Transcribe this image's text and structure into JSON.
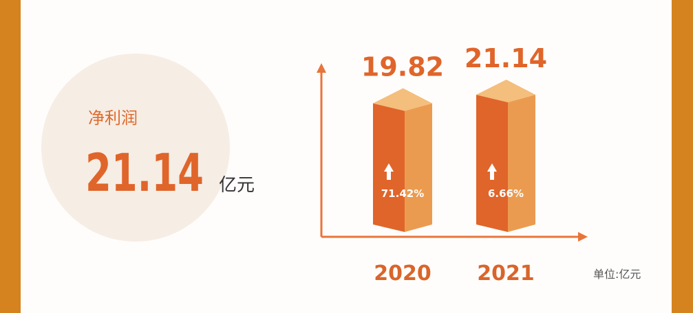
{
  "chart_data": {
    "type": "bar3d",
    "highlight": {
      "label": "净利润",
      "value": "21.14",
      "unit": "亿元"
    },
    "categories": [
      "2020",
      "2021"
    ],
    "values": [
      19.82,
      21.14
    ],
    "annotations": [
      "71.42%",
      "6.66%"
    ],
    "unit_note": "单位:亿元",
    "colors": {
      "front": "#e0652a",
      "side": "#eb9b50",
      "top": "#f4be7c"
    }
  }
}
